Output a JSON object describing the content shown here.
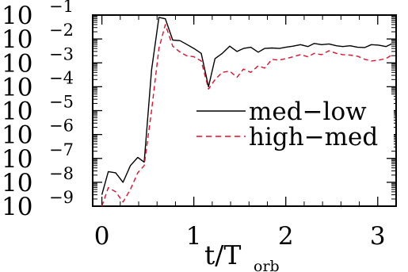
{
  "chart_data": {
    "type": "line",
    "title": "",
    "xlabel_main": "t/T",
    "xlabel_sub": "orb",
    "ylabel": "",
    "xlim": [
      -0.1,
      3.2
    ],
    "ylim_log10": [
      -9,
      -1
    ],
    "y_scale": "log",
    "x_ticks": [
      0,
      1,
      2,
      3
    ],
    "x_tick_labels": [
      "0",
      "1",
      "2",
      "3"
    ],
    "y_ticks": [
      {
        "base": "10",
        "exp": "−1"
      },
      {
        "base": "10",
        "exp": "−2"
      },
      {
        "base": "10",
        "exp": "−3"
      },
      {
        "base": "10",
        "exp": "−4"
      },
      {
        "base": "10",
        "exp": "−5"
      },
      {
        "base": "10",
        "exp": "−6"
      },
      {
        "base": "10",
        "exp": "−7"
      },
      {
        "base": "10",
        "exp": "−8"
      },
      {
        "base": "10",
        "exp": "−9"
      }
    ],
    "legend_position": "center-right",
    "series": [
      {
        "name": "med−low",
        "style": "solid",
        "color": "#000000",
        "points": [
          [
            0.0,
            3e-09
          ],
          [
            0.07,
            2.8e-08
          ],
          [
            0.15,
            2.5e-08
          ],
          [
            0.23,
            1e-08
          ],
          [
            0.31,
            5e-08
          ],
          [
            0.39,
            1.1e-07
          ],
          [
            0.46,
            7e-08
          ],
          [
            0.54,
            0.0005
          ],
          [
            0.62,
            0.08
          ],
          [
            0.69,
            0.07
          ],
          [
            0.77,
            0.009
          ],
          [
            0.85,
            0.0085
          ],
          [
            0.92,
            0.006
          ],
          [
            1.0,
            0.004
          ],
          [
            1.08,
            0.0025
          ],
          [
            1.16,
            0.0001
          ],
          [
            1.23,
            0.0015
          ],
          [
            1.31,
            0.0025
          ],
          [
            1.39,
            0.005
          ],
          [
            1.47,
            0.003
          ],
          [
            1.54,
            0.004
          ],
          [
            1.62,
            0.0045
          ],
          [
            1.7,
            0.0028
          ],
          [
            1.77,
            0.004
          ],
          [
            1.85,
            0.0042
          ],
          [
            1.93,
            0.004
          ],
          [
            2.0,
            0.0045
          ],
          [
            2.08,
            0.005
          ],
          [
            2.16,
            0.0058
          ],
          [
            2.24,
            0.0048
          ],
          [
            2.31,
            0.0065
          ],
          [
            2.39,
            0.0058
          ],
          [
            2.47,
            0.0062
          ],
          [
            2.55,
            0.0052
          ],
          [
            2.62,
            0.0048
          ],
          [
            2.7,
            0.0052
          ],
          [
            2.78,
            0.0045
          ],
          [
            2.86,
            0.0044
          ],
          [
            2.93,
            0.0058
          ],
          [
            3.01,
            0.0055
          ],
          [
            3.09,
            0.0048
          ],
          [
            3.15,
            0.0062
          ]
        ]
      },
      {
        "name": "high−med",
        "style": "dashed",
        "color": "#e0102f",
        "points": [
          [
            0.0,
            1e-09
          ],
          [
            0.07,
            6e-09
          ],
          [
            0.15,
            4e-09
          ],
          [
            0.23,
            1.5e-09
          ],
          [
            0.31,
            5e-09
          ],
          [
            0.39,
            2.5e-08
          ],
          [
            0.46,
            5e-08
          ],
          [
            0.54,
            1e-05
          ],
          [
            0.62,
            0.004
          ],
          [
            0.69,
            0.04
          ],
          [
            0.77,
            0.005
          ],
          [
            0.85,
            0.0028
          ],
          [
            0.92,
            0.002
          ],
          [
            1.0,
            0.0018
          ],
          [
            1.08,
            0.0012
          ],
          [
            1.16,
            8e-05
          ],
          [
            1.23,
            0.0002
          ],
          [
            1.31,
            0.0004
          ],
          [
            1.39,
            0.00045
          ],
          [
            1.47,
            0.00025
          ],
          [
            1.54,
            0.00055
          ],
          [
            1.62,
            0.0004
          ],
          [
            1.7,
            0.00075
          ],
          [
            1.77,
            0.0006
          ],
          [
            1.85,
            0.0014
          ],
          [
            1.93,
            0.0013
          ],
          [
            2.0,
            0.0015
          ],
          [
            2.08,
            0.0018
          ],
          [
            2.16,
            0.0022
          ],
          [
            2.24,
            0.0018
          ],
          [
            2.31,
            0.0025
          ],
          [
            2.39,
            0.0022
          ],
          [
            2.47,
            0.0032
          ],
          [
            2.55,
            0.0025
          ],
          [
            2.62,
            0.0022
          ],
          [
            2.7,
            0.0021
          ],
          [
            2.78,
            0.0019
          ],
          [
            2.86,
            0.0014
          ],
          [
            2.93,
            0.0012
          ],
          [
            3.01,
            0.0013
          ],
          [
            3.09,
            0.0015
          ],
          [
            3.15,
            0.0021
          ]
        ]
      }
    ]
  }
}
